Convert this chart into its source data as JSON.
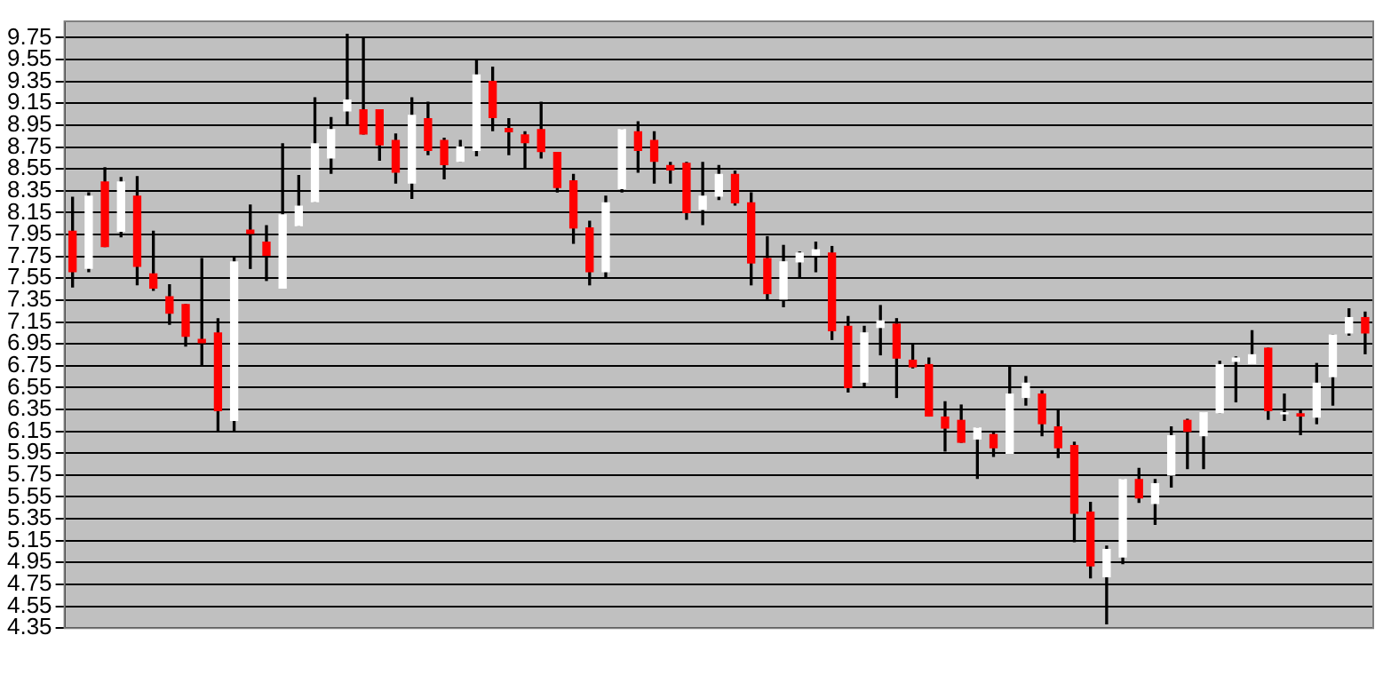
{
  "chart_data": {
    "type": "candlestick",
    "categories": [
      null,
      null,
      null,
      null,
      null,
      null,
      null,
      null,
      null,
      null,
      null,
      null,
      null,
      null,
      null,
      null,
      null,
      null,
      null,
      null,
      null,
      null,
      null,
      null,
      null,
      null,
      null,
      null,
      null,
      null,
      null,
      null,
      null,
      null,
      null,
      null,
      null,
      null,
      null,
      null,
      null,
      null,
      null,
      null,
      null,
      null,
      null,
      null,
      null,
      null,
      null,
      null,
      null,
      null,
      null,
      null,
      null,
      null,
      null,
      null,
      null,
      null,
      null,
      null,
      null,
      null,
      null,
      null,
      null,
      null,
      null,
      null,
      null,
      null,
      null,
      null,
      null,
      null,
      null,
      null,
      null
    ],
    "ohlc": [
      [
        7.98,
        8.29,
        7.47,
        7.61
      ],
      [
        7.64,
        8.33,
        7.61,
        8.3
      ],
      [
        8.43,
        8.56,
        7.84,
        7.84
      ],
      [
        7.98,
        8.47,
        7.93,
        8.43
      ],
      [
        8.3,
        8.48,
        7.49,
        7.66
      ],
      [
        7.59,
        7.98,
        7.44,
        7.46
      ],
      [
        7.38,
        7.49,
        7.13,
        7.23
      ],
      [
        7.31,
        7.31,
        6.93,
        7.02
      ],
      [
        6.99,
        7.73,
        6.75,
        6.96
      ],
      [
        7.05,
        7.18,
        6.15,
        6.34
      ],
      [
        6.25,
        7.74,
        6.15,
        7.7
      ],
      [
        7.99,
        8.22,
        7.64,
        7.96
      ],
      [
        7.88,
        8.03,
        7.53,
        7.76
      ],
      [
        7.46,
        8.78,
        7.46,
        8.13
      ],
      [
        8.03,
        8.49,
        8.03,
        8.21
      ],
      [
        8.25,
        9.2,
        8.25,
        8.78
      ],
      [
        8.65,
        9.02,
        8.51,
        8.91
      ],
      [
        9.08,
        9.78,
        8.95,
        9.18
      ],
      [
        9.09,
        9.75,
        8.87,
        8.87
      ],
      [
        9.09,
        9.09,
        8.63,
        8.77
      ],
      [
        8.81,
        8.87,
        8.42,
        8.52
      ],
      [
        8.42,
        9.2,
        8.28,
        9.04
      ],
      [
        9.01,
        9.16,
        8.68,
        8.72
      ],
      [
        8.81,
        8.83,
        8.46,
        8.59
      ],
      [
        8.62,
        8.81,
        8.62,
        8.75
      ],
      [
        8.72,
        9.55,
        8.67,
        9.41
      ],
      [
        9.35,
        9.48,
        8.9,
        9.02
      ],
      [
        8.92,
        9.01,
        8.68,
        8.89
      ],
      [
        8.86,
        8.89,
        8.55,
        8.79
      ],
      [
        8.91,
        9.16,
        8.65,
        8.71
      ],
      [
        8.7,
        8.7,
        8.34,
        8.38
      ],
      [
        8.44,
        8.5,
        7.87,
        8.01
      ],
      [
        8.01,
        8.07,
        7.49,
        7.61
      ],
      [
        7.61,
        8.3,
        7.56,
        8.24
      ],
      [
        8.37,
        8.91,
        8.34,
        8.91
      ],
      [
        8.89,
        8.98,
        8.52,
        8.72
      ],
      [
        8.81,
        8.89,
        8.42,
        8.62
      ],
      [
        8.58,
        8.61,
        8.42,
        8.54
      ],
      [
        8.6,
        8.61,
        8.09,
        8.15
      ],
      [
        8.18,
        8.61,
        8.04,
        8.3
      ],
      [
        8.3,
        8.58,
        8.27,
        8.5
      ],
      [
        8.5,
        8.53,
        8.22,
        8.24
      ],
      [
        8.24,
        8.33,
        7.49,
        7.69
      ],
      [
        7.73,
        7.93,
        7.36,
        7.41
      ],
      [
        7.36,
        7.85,
        7.29,
        7.7
      ],
      [
        7.7,
        7.79,
        7.56,
        7.78
      ],
      [
        7.76,
        7.88,
        7.61,
        7.81
      ],
      [
        7.78,
        7.84,
        6.99,
        7.07
      ],
      [
        7.11,
        7.2,
        6.51,
        6.55
      ],
      [
        6.6,
        7.11,
        6.55,
        7.05
      ],
      [
        7.1,
        7.3,
        6.85,
        7.16
      ],
      [
        7.13,
        7.18,
        6.46,
        6.82
      ],
      [
        6.8,
        6.95,
        6.73,
        6.74
      ],
      [
        6.76,
        6.82,
        6.29,
        6.29
      ],
      [
        6.28,
        6.42,
        5.97,
        6.18
      ],
      [
        6.25,
        6.39,
        6.05,
        6.05
      ],
      [
        6.08,
        6.18,
        5.72,
        6.18
      ],
      [
        6.12,
        6.14,
        5.92,
        6.0
      ],
      [
        5.95,
        6.74,
        5.95,
        6.49
      ],
      [
        6.46,
        6.65,
        6.39,
        6.59
      ],
      [
        6.49,
        6.52,
        6.11,
        6.22
      ],
      [
        6.19,
        6.34,
        5.91,
        6.0
      ],
      [
        6.02,
        6.05,
        5.14,
        5.4
      ],
      [
        5.41,
        5.5,
        4.81,
        4.92
      ],
      [
        4.82,
        5.1,
        4.39,
        5.07
      ],
      [
        5.0,
        5.71,
        4.94,
        5.71
      ],
      [
        5.71,
        5.81,
        5.5,
        5.54
      ],
      [
        5.49,
        5.71,
        5.3,
        5.67
      ],
      [
        5.75,
        6.19,
        5.64,
        6.11
      ],
      [
        6.25,
        6.26,
        5.81,
        6.15
      ],
      [
        6.11,
        6.32,
        5.81,
        6.32
      ],
      [
        6.32,
        6.79,
        6.32,
        6.76
      ],
      [
        6.79,
        6.83,
        6.42,
        6.82
      ],
      [
        6.77,
        7.07,
        6.77,
        6.85
      ],
      [
        6.91,
        6.91,
        6.26,
        6.34
      ],
      [
        6.31,
        6.49,
        6.25,
        6.32
      ],
      [
        6.31,
        6.34,
        6.12,
        6.29
      ],
      [
        6.28,
        6.77,
        6.22,
        6.59
      ],
      [
        6.65,
        7.03,
        6.39,
        7.03
      ],
      [
        7.05,
        7.27,
        7.03,
        7.19
      ],
      [
        7.19,
        7.24,
        6.86,
        7.05
      ]
    ],
    "colors": [
      "#ff0000",
      "#ffffff",
      "#ff0000",
      "#ffffff",
      "#ff0000",
      "#ff0000",
      "#ff0000",
      "#ff0000",
      "#ff0000",
      "#ff0000",
      "#ffffff",
      "#ff0000",
      "#ff0000",
      "#ffffff",
      "#ffffff",
      "#ffffff",
      "#ffffff",
      "#ffffff",
      "#ff0000",
      "#ff0000",
      "#ff0000",
      "#ffffff",
      "#ff0000",
      "#ff0000",
      "#ffffff",
      "#ffffff",
      "#ff0000",
      "#ff0000",
      "#ff0000",
      "#ff0000",
      "#ff0000",
      "#ff0000",
      "#ff0000",
      "#ffffff",
      "#ffffff",
      "#ff0000",
      "#ff0000",
      "#ff0000",
      "#ff0000",
      "#ffffff",
      "#ffffff",
      "#ff0000",
      "#ff0000",
      "#ff0000",
      "#ffffff",
      "#ffffff",
      "#ffffff",
      "#ff0000",
      "#ff0000",
      "#ffffff",
      "#ffffff",
      "#ff0000",
      "#ff0000",
      "#ff0000",
      "#ff0000",
      "#ff0000",
      "#ffffff",
      "#ff0000",
      "#ffffff",
      "#ffffff",
      "#ff0000",
      "#ff0000",
      "#ff0000",
      "#ff0000",
      "#ffffff",
      "#ffffff",
      "#ff0000",
      "#ffffff",
      "#ffffff",
      "#ff0000",
      "#ffffff",
      "#ffffff",
      "#ffffff",
      "#ffffff",
      "#ff0000",
      "#ffffff",
      "#ff0000",
      "#ffffff",
      "#ffffff",
      "#ffffff",
      "#ff0000"
    ],
    "ylim": [
      4.35,
      9.9
    ],
    "yticks": [
      4.35,
      4.55,
      4.75,
      4.95,
      5.15,
      5.35,
      5.55,
      5.75,
      5.95,
      6.15,
      6.35,
      6.55,
      6.75,
      6.95,
      7.15,
      7.35,
      7.55,
      7.75,
      7.95,
      8.15,
      8.35,
      8.55,
      8.75,
      8.95,
      9.15,
      9.35,
      9.55,
      9.75
    ],
    "grid": "y"
  }
}
